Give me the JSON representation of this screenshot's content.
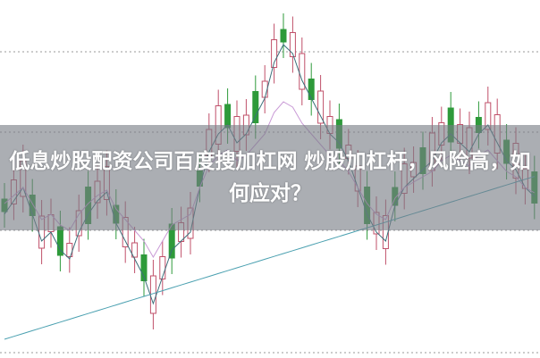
{
  "article": {
    "title": "低息炒股配资公司百度搜加杠网 炒股加杠杆，风险高，如何应对？"
  },
  "colors": {
    "up": "#c0506a",
    "down": "#2e9a3a",
    "grid": "#999999",
    "ma_short": "#3a6f7a",
    "ma_mid": "#c99ad6",
    "ma_long": "#4aa0b0"
  }
}
